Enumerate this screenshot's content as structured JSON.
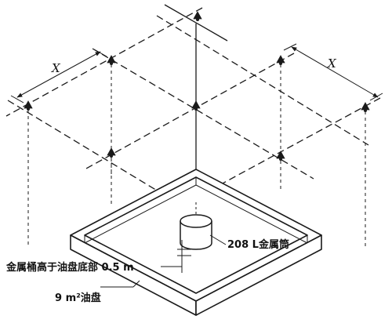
{
  "colors": {
    "line": "#1a1a1a",
    "background": "#ffffff"
  },
  "labels": {
    "spacing_left": "X",
    "spacing_right": "X",
    "drum": "208 L金属筒",
    "drum_height": "金属桶高于油盘底部 0.5 m",
    "pan": "9 m²油盘"
  },
  "icons": {
    "sprinkler": "sprinkler-head-icon"
  }
}
